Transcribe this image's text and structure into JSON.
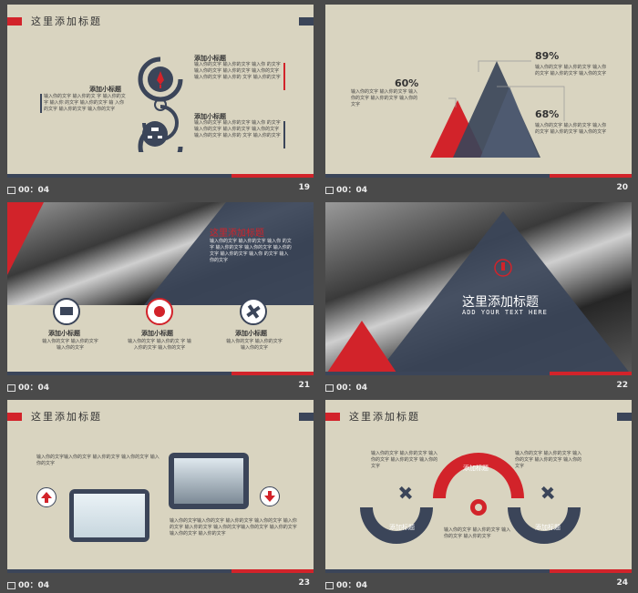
{
  "colors": {
    "red": "#d2232a",
    "navy": "#3b4559",
    "bg": "#d9d4c0",
    "page": "#4a4a4a"
  },
  "slides": {
    "s19": {
      "title": "这里添加标题",
      "sub_left": "添加小标题",
      "sub_top": "添加小标题",
      "sub_bottom": "添加小标题",
      "body_left": "输入你的文字 输入你的文 字 输入你的文字 输入你 的文字 输入你的文字 输 入你的文字 输入你的文字 输入你的文字",
      "body_top": "输入你的文字 输入你的文字 输入你 的文字 输入你的文字 输入你的文字 输入你的文字 输入你的文字 输入你的 文字 输入你的文字",
      "body_bottom": "输入你的文字 输入你的文字 输入你 的文字 输入你的文字 输入你的文字 输入你的文字 输入你的文字 输入你的 文字 输入你的文字",
      "caption_time": "00：04",
      "caption_num": "19"
    },
    "s20": {
      "pct1": "60%",
      "pct2": "89%",
      "pct3": "68%",
      "body1": "输入你的文字 输入你的文字 输入你的文字 输入你的文字 输入你的文字",
      "body2": "输入你的文字 输入你的文字 输入你的文字 输入你的文字 输入你的文字",
      "body3": "输入你的文字 输入你的文字 输入你的文字 输入你的文字 输入你的文字",
      "caption_time": "00：04",
      "caption_num": "20"
    },
    "s21": {
      "title": "这里添加标题",
      "body": "输入你的文字 输入你的文字 输入你 的文字 输入你的文字 输入你的文字 输入你的文字 输入你的文字 输入你 的文字 输入你的文字",
      "sub1": "添加小标题",
      "sub2": "添加小标题",
      "sub3": "添加小标题",
      "text1": "输入你的文字 输入你的文字 输入你的文字",
      "text2": "输入你的文字 输入你的文 字 输入你的文字 输入你的文字",
      "text3": "输入你的文字 输入你的文字 输入你的文字",
      "caption_time": "00：04",
      "caption_num": "21"
    },
    "s22": {
      "title": "这里添加标题",
      "subtitle": "ADD YOUR TEXT HERE",
      "caption_time": "00：04",
      "caption_num": "22"
    },
    "s23": {
      "title": "这里添加标题",
      "body_top": "输入你的文字输入你的文字 输入你的文字 输入你的文字 输入你的文字",
      "body_bottom": "输入你的文字输入你的文字 输入你的文字 输入你的文字 输入你的文字 输入你的文字 输入你的文字输入你的文字 输入你的文字 输入你的文字 输入你的文字",
      "caption_time": "00：04",
      "caption_num": "23"
    },
    "s24": {
      "title": "这里添加标题",
      "label_top": "添加标题",
      "label_left": "添加标题",
      "label_right": "添加标题",
      "body_left": "输入你的文字 输入你的文字 输入你的文字 输入你的文字 输入你的文字",
      "body_right": "输入你的文字 输入你的文字 输入你的文字 输入你的文字 输入你的文字",
      "body_bottom": "输入你的文字 输入你的文字 输入你的文字 输入你的文字",
      "caption_time": "00：04",
      "caption_num": "24"
    }
  }
}
